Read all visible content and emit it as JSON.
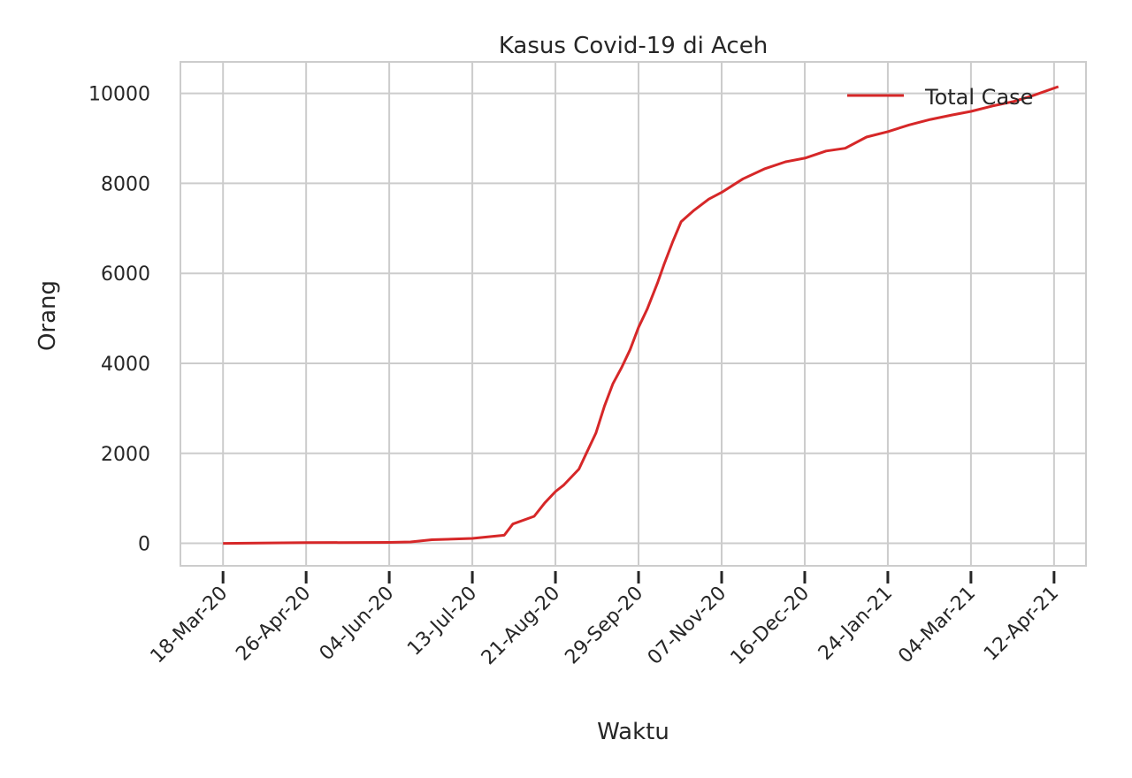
{
  "chart_data": {
    "type": "line",
    "title": "Kasus Covid-19 di Aceh",
    "xlabel": "Waktu",
    "ylabel": "Orang",
    "ylim": [
      -500,
      10700
    ],
    "yticks": [
      0,
      2000,
      4000,
      6000,
      8000,
      10000
    ],
    "ytick_labels": [
      "0",
      "2000",
      "4000",
      "6000",
      "8000",
      "10000"
    ],
    "xlim": [
      "2020-02-27",
      "2021-04-27"
    ],
    "xticks": [
      "2020-03-18",
      "2020-04-26",
      "2020-06-04",
      "2020-07-13",
      "2020-08-21",
      "2020-09-29",
      "2020-11-07",
      "2020-12-16",
      "2021-01-24",
      "2021-03-04",
      "2021-04-12"
    ],
    "xtick_labels": [
      "18-Mar-20",
      "26-Apr-20",
      "04-Jun-20",
      "13-Jul-20",
      "21-Aug-20",
      "29-Sep-20",
      "07-Nov-20",
      "16-Dec-20",
      "24-Jan-21",
      "04-Mar-21",
      "12-Apr-21"
    ],
    "grid": true,
    "legend_position": "top-right",
    "series": [
      {
        "name": "Total Case",
        "color": "#d62728",
        "x": [
          "2020-03-18",
          "2020-04-26",
          "2020-06-04",
          "2020-06-14",
          "2020-06-24",
          "2020-07-13",
          "2020-07-28",
          "2020-08-01",
          "2020-08-11",
          "2020-08-16",
          "2020-08-21",
          "2020-08-25",
          "2020-09-01",
          "2020-09-05",
          "2020-09-09",
          "2020-09-13",
          "2020-09-17",
          "2020-09-21",
          "2020-09-25",
          "2020-09-29",
          "2020-10-03",
          "2020-10-08",
          "2020-10-11",
          "2020-10-15",
          "2020-10-19",
          "2020-10-25",
          "2020-11-01",
          "2020-11-07",
          "2020-11-17",
          "2020-11-27",
          "2020-12-07",
          "2020-12-16",
          "2020-12-26",
          "2021-01-04",
          "2021-01-14",
          "2021-01-24",
          "2021-02-03",
          "2021-02-13",
          "2021-02-23",
          "2021-03-04",
          "2021-03-14",
          "2021-03-24",
          "2021-04-02",
          "2021-04-14"
        ],
        "y": [
          0,
          15,
          20,
          30,
          80,
          110,
          180,
          430,
          600,
          900,
          1150,
          1300,
          1650,
          2050,
          2450,
          3050,
          3550,
          3900,
          4300,
          4800,
          5200,
          5800,
          6200,
          6700,
          7150,
          7400,
          7650,
          7800,
          8100,
          8320,
          8480,
          8560,
          8720,
          8780,
          9030,
          9150,
          9300,
          9420,
          9520,
          9600,
          9720,
          9820,
          9950,
          10150
        ]
      }
    ]
  }
}
